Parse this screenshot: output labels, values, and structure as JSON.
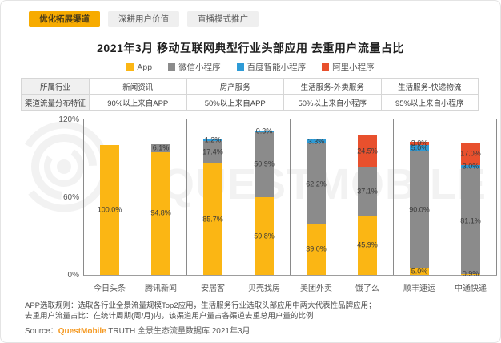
{
  "tabs": {
    "items": [
      {
        "label": "优化拓展渠道",
        "active": true
      },
      {
        "label": "深耕用户价值",
        "active": false
      },
      {
        "label": "直播模式推广",
        "active": false
      }
    ]
  },
  "title": "2021年3月 移动互联网典型行业头部应用 去重用户流量占比",
  "legend": [
    {
      "label": "App",
      "color": "#fbb614"
    },
    {
      "label": "微信小程序",
      "color": "#8b8b8b"
    },
    {
      "label": "百度智能小程序",
      "color": "#2e9bd6"
    },
    {
      "label": "阿里小程序",
      "color": "#e8502d"
    }
  ],
  "table": {
    "row1_header": "所属行业",
    "row2_header": "渠道流量分布特征",
    "columns": [
      {
        "industry": "新闻资讯",
        "feature": "90%以上来自APP"
      },
      {
        "industry": "房产服务",
        "feature": "50%以上来自APP"
      },
      {
        "industry": "生活服务-外卖服务",
        "feature": "50%以上来自小程序"
      },
      {
        "industry": "生活服务-快递物流",
        "feature": "95%以上来自小程序"
      }
    ]
  },
  "chart_data": {
    "type": "bar",
    "stacked": true,
    "title": "2021年3月 移动互联网典型行业头部应用 去重用户流量占比",
    "xlabel": "",
    "ylabel": "",
    "ylim": [
      0,
      120
    ],
    "grid": false,
    "legend_position": "top",
    "yticks": [
      {
        "value": 0,
        "label": "0%"
      },
      {
        "value": 60,
        "label": "60%"
      },
      {
        "value": 120,
        "label": "120%"
      }
    ],
    "categories": [
      "今日头条",
      "腾讯新闻",
      "安居客",
      "贝壳找房",
      "美团外卖",
      "饿了么",
      "顺丰速运",
      "中通快递"
    ],
    "groups": [
      {
        "label": "新闻资讯",
        "categories": [
          "今日头条",
          "腾讯新闻"
        ]
      },
      {
        "label": "房产服务",
        "categories": [
          "安居客",
          "贝壳找房"
        ]
      },
      {
        "label": "生活服务-外卖服务",
        "categories": [
          "美团外卖",
          "饿了么"
        ]
      },
      {
        "label": "生活服务-快递物流",
        "categories": [
          "顺丰速运",
          "中通快递"
        ]
      }
    ],
    "series": [
      {
        "name": "App",
        "color": "#fbb614",
        "values": [
          100.0,
          94.8,
          85.7,
          59.8,
          39.0,
          45.9,
          5.0,
          0.9
        ]
      },
      {
        "name": "微信小程序",
        "color": "#8b8b8b",
        "values": [
          null,
          6.1,
          17.4,
          50.9,
          62.2,
          37.1,
          90.0,
          81.1
        ]
      },
      {
        "name": "百度智能小程序",
        "color": "#2e9bd6",
        "values": [
          null,
          null,
          1.2,
          0.3,
          3.3,
          null,
          5.0,
          3.0
        ]
      },
      {
        "name": "阿里小程序",
        "color": "#e8502d",
        "values": [
          null,
          null,
          null,
          null,
          null,
          24.5,
          3.0,
          17.0
        ]
      }
    ]
  },
  "watermark": {
    "text": "QUESTMOBILE"
  },
  "footnotes": [
    "APP选取规则：选取各行业全景流量规模Top2应用，生活服务行业选取头部应用中两大代表性品牌应用；",
    "去重用户流量占比：在统计周期(周/月)内，该渠道用户量占各渠道去重总用户量的比例"
  ],
  "source": {
    "prefix": "Source：",
    "brand": "QuestMobile",
    "suffix": " TRUTH 全景生态流量数据库 2021年3月"
  }
}
